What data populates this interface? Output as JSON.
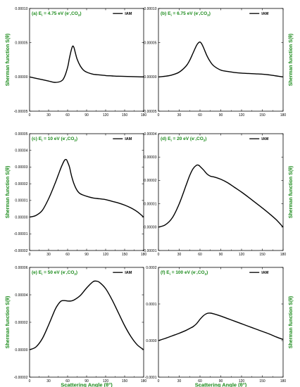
{
  "chart_data": [
    {
      "type": "line",
      "panel_label": "(a)",
      "title": "(a) E",
      "title_sub": "i",
      "title_rest": " = 4.75 eV (e",
      "title_sup": "-",
      "title_end": ",CO",
      "title_sub2": "2",
      "title_close": ")",
      "xlim": [
        0,
        180
      ],
      "ylim": [
        -5e-05,
        0.0001
      ],
      "xticks": [
        "0",
        "30",
        "60",
        "90",
        "120",
        "150",
        "180"
      ],
      "yticks": [
        "-0.00005",
        "0.00000",
        "0.00005",
        "0.00010"
      ],
      "ylabel": "Sherman function S(θ)",
      "series": [
        {
          "name": "IAM",
          "x": [
            0,
            10,
            20,
            30,
            40,
            50,
            55,
            60,
            63,
            66,
            68,
            70,
            72,
            75,
            80,
            85,
            90,
            100,
            110,
            120,
            130,
            140,
            150,
            160,
            170,
            180
          ],
          "y": [
            0.0,
            -2e-06,
            -4e-06,
            -6e-06,
            -8e-06,
            -6e-06,
            0.0,
            1.4e-05,
            2.8e-05,
            4e-05,
            4.5e-05,
            4.3e-05,
            3.6e-05,
            2.6e-05,
            1.6e-05,
            1e-05,
            7e-06,
            4e-06,
            3e-06,
            2e-06,
            1.5e-06,
            1e-06,
            8e-07,
            5e-07,
            3e-07,
            0.0
          ]
        }
      ]
    },
    {
      "type": "line",
      "panel_label": "(b)",
      "title": "(b) E",
      "title_sub": "i",
      "title_rest": " = 6.75 eV (e",
      "title_sup": "-",
      "title_end": ",CO",
      "title_sub2": "2",
      "title_close": ")",
      "xlim": [
        0,
        180
      ],
      "ylim": [
        -5e-05,
        0.0001
      ],
      "xticks": [
        "0",
        "30",
        "60",
        "90",
        "120",
        "150",
        "180"
      ],
      "yticks": [
        "-0.00005",
        "0.00000",
        "0.00005",
        "0.00010"
      ],
      "ylabel": "Sherman function S(θ)",
      "series": [
        {
          "name": "IAM",
          "x": [
            0,
            10,
            20,
            30,
            40,
            45,
            50,
            55,
            58,
            60,
            62,
            65,
            70,
            75,
            80,
            90,
            100,
            110,
            120,
            130,
            140,
            150,
            160,
            170,
            180
          ],
          "y": [
            0.0,
            1e-06,
            3e-06,
            7e-06,
            1.6e-05,
            2.4e-05,
            3.5e-05,
            4.6e-05,
            5e-05,
            5.1e-05,
            4.9e-05,
            4.3e-05,
            3.1e-05,
            2.2e-05,
            1.6e-05,
            1e-05,
            8e-06,
            6.5e-06,
            5.5e-06,
            5e-06,
            4.5e-06,
            4e-06,
            3e-06,
            1.5e-06,
            0.0
          ]
        }
      ]
    },
    {
      "type": "line",
      "panel_label": "(c)",
      "title": "(c) E",
      "title_sub": "i",
      "title_rest": " = 10 eV (e",
      "title_sup": "-",
      "title_end": ",CO",
      "title_sub2": "2",
      "title_close": ")",
      "xlim": [
        0,
        180
      ],
      "ylim": [
        -2e-05,
        5e-05
      ],
      "xticks": [
        "0",
        "30",
        "60",
        "90",
        "120",
        "150",
        "180"
      ],
      "yticks": [
        "-0.00002",
        "-0.00001",
        "0.00000",
        "0.00001",
        "0.00002",
        "0.00003",
        "0.00004",
        "0.00005"
      ],
      "ylabel": "Sherman function S(θ)",
      "series": [
        {
          "name": "IAM",
          "x": [
            0,
            10,
            20,
            30,
            40,
            45,
            50,
            55,
            58,
            60,
            63,
            66,
            70,
            75,
            80,
            90,
            100,
            110,
            120,
            130,
            140,
            150,
            160,
            170,
            180
          ],
          "y": [
            0.0,
            1e-06,
            4e-06,
            1.1e-05,
            2e-05,
            2.5e-05,
            3e-05,
            3.4e-05,
            3.45e-05,
            3.3e-05,
            3e-05,
            2.5e-05,
            2e-05,
            1.6e-05,
            1.4e-05,
            1.25e-05,
            1.15e-05,
            1.1e-05,
            1.05e-05,
            9.5e-06,
            8.5e-06,
            7.2e-06,
            5.5e-06,
            3.2e-06,
            0.0
          ]
        }
      ]
    },
    {
      "type": "line",
      "panel_label": "(d)",
      "title": "(d) E",
      "title_sub": "i",
      "title_rest": " = 20 eV (e",
      "title_sup": "-",
      "title_end": ",CO",
      "title_sub2": "2",
      "title_close": ")",
      "xlim": [
        0,
        180
      ],
      "ylim": [
        -1e-05,
        4e-05
      ],
      "xticks": [
        "0",
        "30",
        "60",
        "90",
        "120",
        "150",
        "180"
      ],
      "yticks": [
        "-0.00001",
        "0.00000",
        "0.00001",
        "0.00002",
        "0.00003",
        "0.00004"
      ],
      "ylabel": "Sherman function S(θ)",
      "series": [
        {
          "name": "IAM",
          "x": [
            0,
            10,
            20,
            30,
            40,
            45,
            50,
            55,
            58,
            60,
            65,
            70,
            75,
            80,
            90,
            100,
            110,
            120,
            130,
            140,
            150,
            160,
            170,
            180
          ],
          "y": [
            0.0,
            1e-06,
            4e-06,
            1e-05,
            1.8e-05,
            2.2e-05,
            2.5e-05,
            2.65e-05,
            2.65e-05,
            2.6e-05,
            2.45e-05,
            2.28e-05,
            2.18e-05,
            2.15e-05,
            2.05e-05,
            1.9e-05,
            1.7e-05,
            1.5e-05,
            1.28e-05,
            1.05e-05,
            8.2e-06,
            5.8e-06,
            3.2e-06,
            0.0
          ]
        }
      ]
    },
    {
      "type": "line",
      "panel_label": "(e)",
      "title": "(e) E",
      "title_sub": "i",
      "title_rest": " = 50 eV (e",
      "title_sup": "-",
      "title_end": ",CO",
      "title_sub2": "2",
      "title_close": ")",
      "xlim": [
        0,
        180
      ],
      "ylim": [
        -2e-05,
        6e-05
      ],
      "xticks": [
        "0",
        "30",
        "60",
        "90",
        "120",
        "150",
        "180"
      ],
      "yticks": [
        "-0.00002",
        "0.00000",
        "0.00002",
        "0.00004",
        "0.00006"
      ],
      "ylabel": "Sherman function S(θ)",
      "series": [
        {
          "name": "IAM",
          "x": [
            0,
            10,
            20,
            30,
            40,
            45,
            50,
            55,
            60,
            65,
            70,
            80,
            90,
            100,
            105,
            110,
            120,
            130,
            140,
            150,
            160,
            170,
            180
          ],
          "y": [
            0.0,
            2e-06,
            8e-06,
            1.8e-05,
            2.9e-05,
            3.3e-05,
            3.55e-05,
            3.58e-05,
            3.55e-05,
            3.55e-05,
            3.62e-05,
            3.95e-05,
            4.5e-05,
            4.95e-05,
            5e-05,
            4.92e-05,
            4.45e-05,
            3.65e-05,
            2.7e-05,
            1.75e-05,
            9.5e-06,
            3.5e-06,
            0.0
          ]
        }
      ]
    },
    {
      "type": "line",
      "panel_label": "(f)",
      "title": "(f) E",
      "title_sub": "i",
      "title_rest": " = 100 eV (e",
      "title_sup": "-",
      "title_end": ",CO",
      "title_sub2": "2",
      "title_close": ")",
      "xlim": [
        0,
        180
      ],
      "ylim": [
        -0.0001,
        0.0002
      ],
      "xticks": [
        "0",
        "30",
        "60",
        "90",
        "120",
        "150",
        "180"
      ],
      "yticks": [
        "-0.0001",
        "0.0000",
        "0.0001",
        "0.0002"
      ],
      "ylabel": "Sherman function S(θ)",
      "series": [
        {
          "name": "IAM",
          "x": [
            0,
            10,
            20,
            30,
            40,
            45,
            50,
            55,
            60,
            65,
            70,
            75,
            80,
            90,
            100,
            110,
            120,
            130,
            140,
            150,
            160,
            170,
            180
          ],
          "y": [
            0.0,
            6e-06,
            1.3e-05,
            2e-05,
            2.8e-05,
            3.3e-05,
            3.8e-05,
            4.6e-05,
            5.8e-05,
            6.8e-05,
            7.4e-05,
            7.5e-05,
            7.3e-05,
            6.7e-05,
            6e-05,
            5.3e-05,
            4.6e-05,
            3.9e-05,
            3.2e-05,
            2.5e-05,
            1.8e-05,
            1e-05,
            3e-06
          ]
        }
      ]
    }
  ],
  "xlabel": "Scattering Angle (θ°)",
  "colors": {
    "label_green": "#1a8a1a",
    "line": "#000000"
  }
}
